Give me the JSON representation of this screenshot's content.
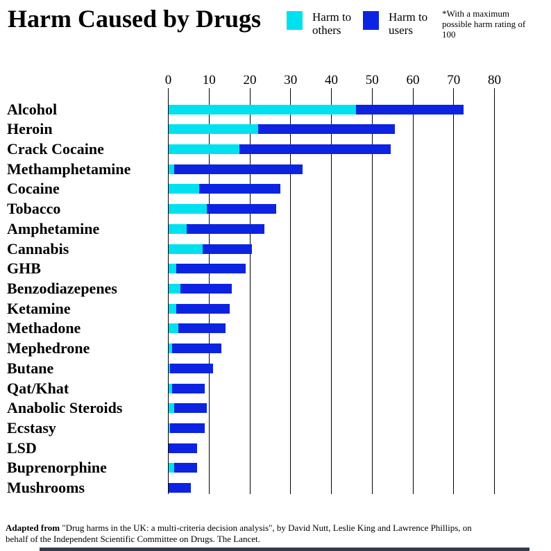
{
  "title": "Harm Caused by Drugs",
  "legend": {
    "others_label": "Harm to others",
    "users_label": "Harm to users"
  },
  "note": "*With a maximum possible harm rating of 100",
  "footer": {
    "bold_prefix": "Adapted from",
    "rest": " \"Drug harms in the UK: a multi-criteria decision analysis\", by David Nutt, Leslie King and Lawrence Phillips, on behalf of the Independent Scientific Committee on Drugs. The Lancet."
  },
  "colors": {
    "harm_to_others": "#00E1F0",
    "harm_to_users": "#0C24E1",
    "gridline": "#000000"
  },
  "chart_data": {
    "type": "bar",
    "orientation": "horizontal",
    "stacked": true,
    "title": "Harm Caused by Drugs",
    "xlabel": "",
    "ylabel": "",
    "xlim": [
      0,
      80
    ],
    "xticks": [
      0,
      10,
      20,
      30,
      40,
      50,
      60,
      70,
      80
    ],
    "grid": true,
    "axis_position": "top",
    "legend_position": "top",
    "max_possible_rating": 100,
    "categories": [
      "Alcohol",
      "Heroin",
      "Crack Cocaine",
      "Methamphetamine",
      "Cocaine",
      "Tobacco",
      "Amphetamine",
      "Cannabis",
      "GHB",
      "Benzodiazepenes",
      "Ketamine",
      "Methadone",
      "Mephedrone",
      "Butane",
      "Qat/Khat",
      "Anabolic Steroids",
      "Ecstasy",
      "LSD",
      "Buprenorphine",
      "Mushrooms"
    ],
    "series": [
      {
        "name": "Harm to others",
        "color": "#00E1F0",
        "values": [
          46,
          22,
          17.5,
          1.5,
          7.5,
          9.5,
          4.5,
          8.5,
          2,
          3,
          2,
          2.5,
          1,
          0.5,
          1,
          1.5,
          0.5,
          0,
          1.5,
          0
        ]
      },
      {
        "name": "Harm to users",
        "color": "#0C24E1",
        "values": [
          26.5,
          33.5,
          37,
          31.5,
          20,
          17,
          19,
          12,
          17,
          12.5,
          13,
          11.5,
          12,
          10.5,
          8,
          8,
          8.5,
          7,
          5.5,
          5.5
        ]
      }
    ],
    "totals": [
      72.5,
      55.5,
      54.5,
      33,
      27.5,
      26.5,
      23.5,
      20.5,
      19,
      15.5,
      15,
      14,
      13,
      11,
      9,
      9.5,
      9,
      7,
      7,
      5.5
    ]
  }
}
